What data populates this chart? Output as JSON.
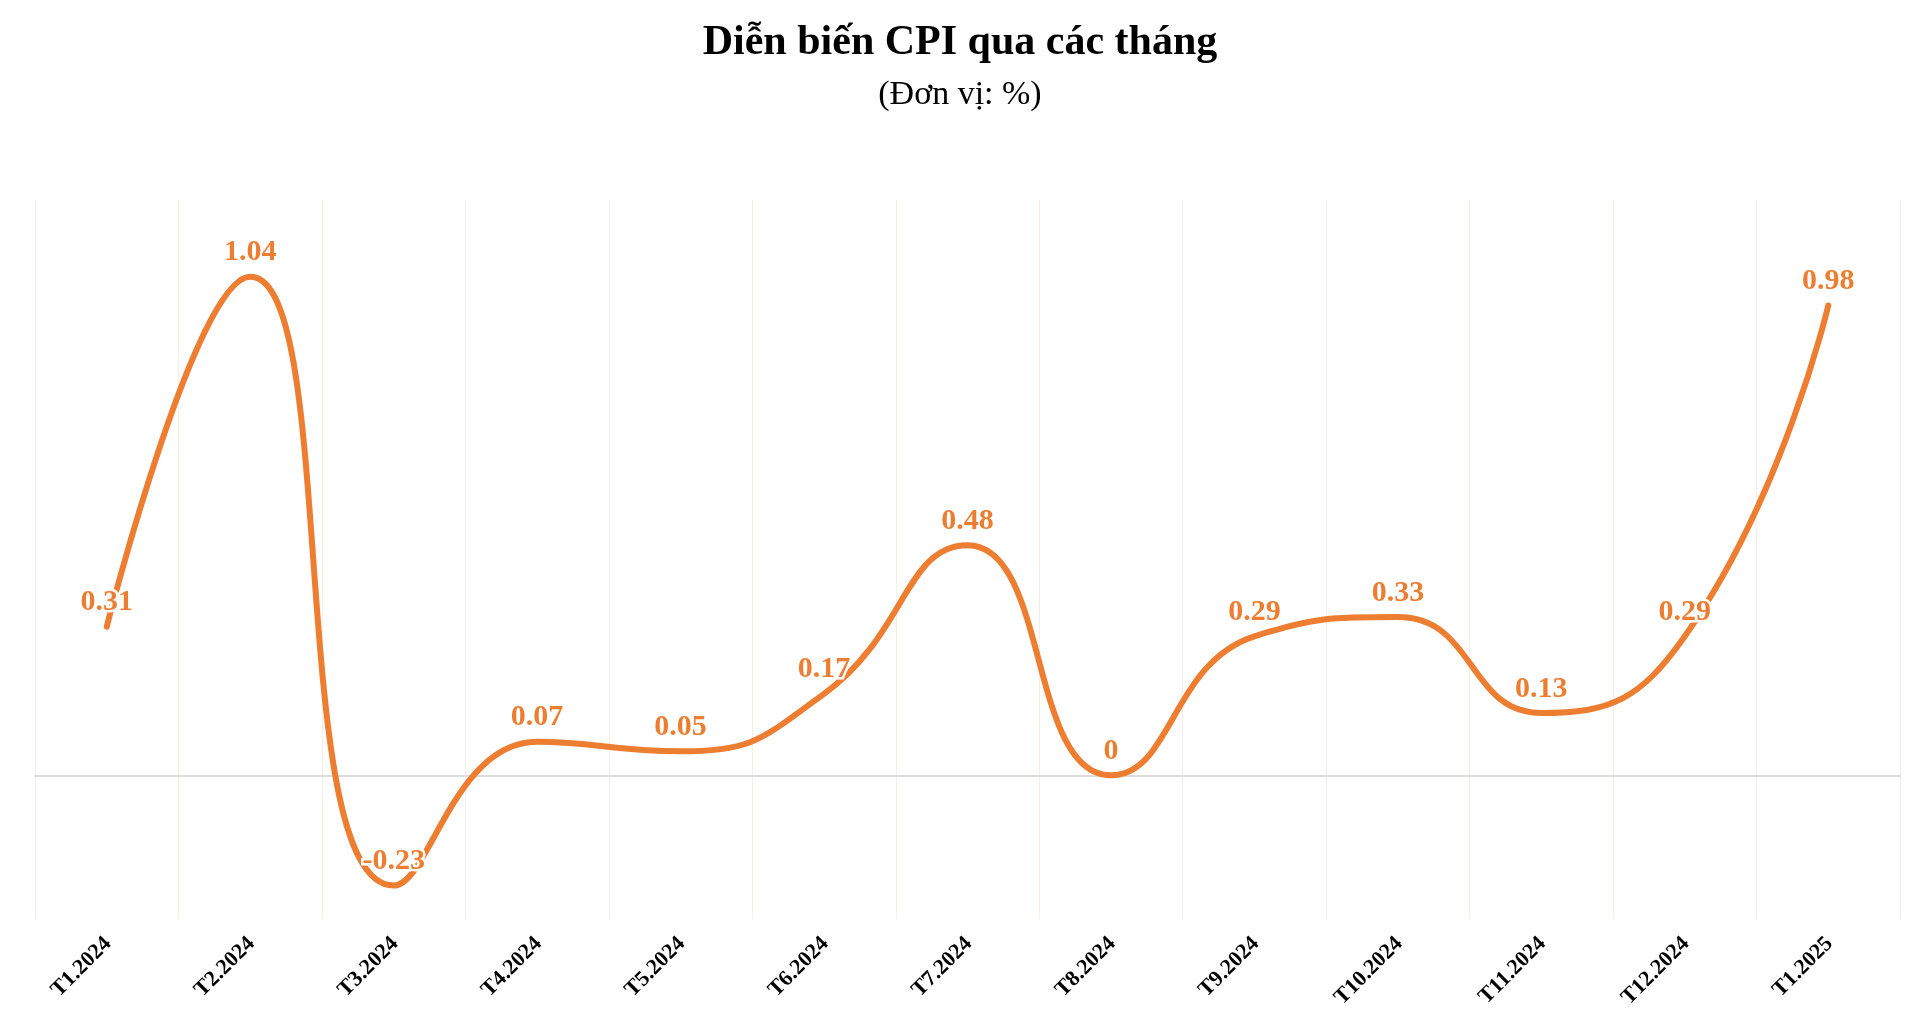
{
  "chart_data": {
    "type": "line",
    "title": "Diễn biến CPI qua các tháng",
    "subtitle": "(Đơn vị: %)",
    "categories": [
      "T1.2024",
      "T2.2024",
      "T3.2024",
      "T4.2024",
      "T5.2024",
      "T6.2024",
      "T7.2024",
      "T8.2024",
      "T9.2024",
      "T10.2024",
      "T11.2024",
      "T12.2024",
      "T1.2025"
    ],
    "series": [
      {
        "color": "#ed7d31",
        "values": [
          0.31,
          1.04,
          -0.23,
          0.07,
          0.05,
          0.17,
          0.48,
          0,
          0.29,
          0.33,
          0.13,
          0.29,
          0.98
        ]
      }
    ],
    "data_labels": true,
    "grid": "x",
    "tick_labels": "x",
    "marker": "none",
    "line_style": "solid"
  }
}
